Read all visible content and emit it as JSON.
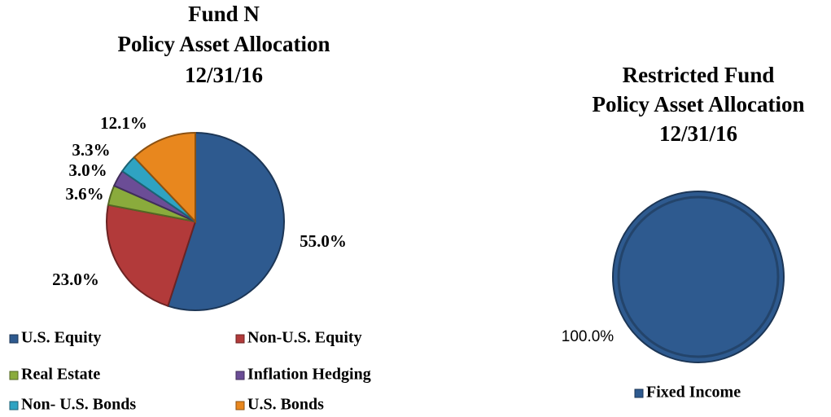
{
  "chart_data": [
    {
      "type": "pie",
      "title": [
        "Fund N",
        "Policy Asset Allocation",
        "12/31/16"
      ],
      "categories": [
        "U.S. Equity",
        "Non-U.S. Equity",
        "Real Estate",
        "Inflation Hedging",
        "Non- U.S. Bonds",
        "U.S. Bonds"
      ],
      "values": [
        55.0,
        23.0,
        3.6,
        3.0,
        3.3,
        12.1
      ],
      "value_labels": [
        "55.0%",
        "23.0%",
        "3.6%",
        "3.0%",
        "3.3%",
        "12.1%"
      ],
      "colors": [
        "#2e5a8f",
        "#b23a3a",
        "#8aab3c",
        "#6b4d96",
        "#2fa3c2",
        "#e8871e"
      ],
      "legend": "bottom"
    },
    {
      "type": "pie",
      "title": [
        "Restricted Fund",
        "Policy Asset Allocation",
        "12/31/16"
      ],
      "categories": [
        "Fixed Income"
      ],
      "values": [
        100.0
      ],
      "value_labels": [
        "100.0%"
      ],
      "colors": [
        "#2e5a8f"
      ],
      "legend": "bottom"
    }
  ]
}
